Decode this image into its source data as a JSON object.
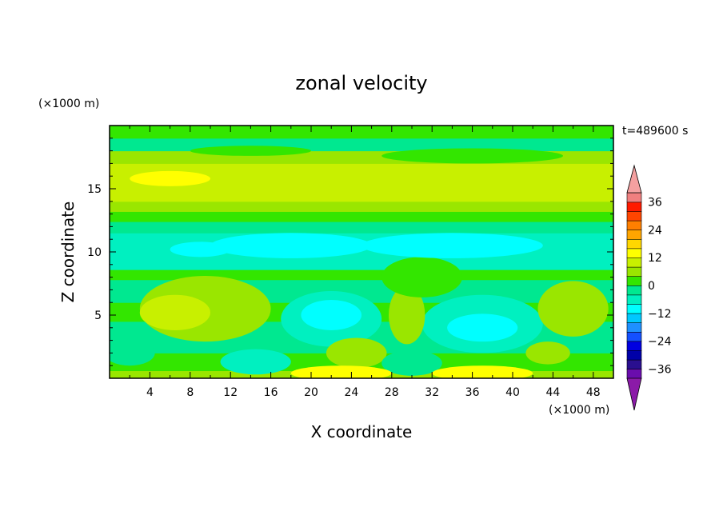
{
  "chart_data": {
    "type": "heatmap",
    "title": "zonal velocity",
    "xlabel": "X coordinate",
    "ylabel": "Z coordinate",
    "x_unit": "(×1000 m)",
    "y_unit": "(×1000 m)",
    "time_label": "t=489600 s",
    "xlim": [
      0,
      50
    ],
    "ylim": [
      0,
      20
    ],
    "xticks": [
      4,
      8,
      12,
      16,
      20,
      24,
      28,
      32,
      36,
      40,
      44,
      48
    ],
    "yticks": [
      5,
      10,
      15
    ],
    "colorbar": {
      "levels": [
        -40,
        -36,
        -32,
        -28,
        -24,
        -20,
        -16,
        -12,
        -8,
        -4,
        0,
        4,
        8,
        12,
        16,
        20,
        24,
        28,
        32,
        36,
        40
      ],
      "labeled_ticks": [
        36,
        24,
        12,
        0,
        -12,
        -24,
        -36
      ],
      "colors": [
        "#6a0dad",
        "#2a0f8f",
        "#0000a8",
        "#0000e0",
        "#1450ff",
        "#1e90ff",
        "#00c8ff",
        "#00ffff",
        "#00f0c0",
        "#00e890",
        "#33e600",
        "#9ae600",
        "#c8f000",
        "#ffff00",
        "#ffd700",
        "#ffa500",
        "#ff7f00",
        "#ff4500",
        "#ff1a00",
        "#f08080"
      ],
      "extend_low_color": "#8b1aa8",
      "extend_high_color": "#f4a0a0"
    },
    "bands": [
      {
        "z": [
          0,
          0.6
        ],
        "value": 6
      },
      {
        "z": [
          0.6,
          2.0
        ],
        "value": 0
      },
      {
        "z": [
          2.0,
          4.5
        ],
        "value": -4
      },
      {
        "z": [
          4.5,
          6.0
        ],
        "value": 2
      },
      {
        "z": [
          6.0,
          7.8
        ],
        "value": -2
      },
      {
        "z": [
          7.8,
          8.6
        ],
        "value": 2
      },
      {
        "z": [
          8.6,
          11.5
        ],
        "value": -8
      },
      {
        "z": [
          11.5,
          12.4
        ],
        "value": -4
      },
      {
        "z": [
          12.4,
          13.2
        ],
        "value": 2
      },
      {
        "z": [
          13.2,
          14.0
        ],
        "value": 6
      },
      {
        "z": [
          14.0,
          17.0
        ],
        "value": 10
      },
      {
        "z": [
          17.0,
          18.0
        ],
        "value": 6
      },
      {
        "z": [
          18.0,
          19.0
        ],
        "value": -2
      },
      {
        "z": [
          19.0,
          20.0
        ],
        "value": 1
      }
    ],
    "blobs": [
      {
        "x": 9.5,
        "z": 5.5,
        "rx": 6.5,
        "rz": 2.6,
        "value": 6
      },
      {
        "x": 6.5,
        "z": 5.2,
        "rx": 3.5,
        "rz": 1.4,
        "value": 9
      },
      {
        "x": 22,
        "z": 4.7,
        "rx": 5.0,
        "rz": 2.2,
        "value": -8
      },
      {
        "x": 22,
        "z": 5.0,
        "rx": 3.0,
        "rz": 1.2,
        "value": -11
      },
      {
        "x": 37,
        "z": 4.3,
        "rx": 6.0,
        "rz": 2.3,
        "value": -8
      },
      {
        "x": 37,
        "z": 4.0,
        "rx": 3.5,
        "rz": 1.1,
        "value": -11
      },
      {
        "x": 29.5,
        "z": 5.0,
        "rx": 1.8,
        "rz": 2.3,
        "value": 6
      },
      {
        "x": 46,
        "z": 5.5,
        "rx": 3.5,
        "rz": 2.2,
        "value": 4
      },
      {
        "x": 31,
        "z": 8.0,
        "rx": 4.0,
        "rz": 1.6,
        "value": 2
      },
      {
        "x": 24.5,
        "z": 2.0,
        "rx": 3.0,
        "rz": 1.2,
        "value": 6
      },
      {
        "x": 43.5,
        "z": 2.0,
        "rx": 2.2,
        "rz": 0.9,
        "value": 6
      },
      {
        "x": 2.0,
        "z": 2.0,
        "rx": 2.5,
        "rz": 1.0,
        "value": -4
      },
      {
        "x": 14.5,
        "z": 1.3,
        "rx": 3.5,
        "rz": 1.0,
        "value": -8
      },
      {
        "x": 30,
        "z": 1.2,
        "rx": 3.0,
        "rz": 1.0,
        "value": -4
      },
      {
        "x": 23,
        "z": 0.4,
        "rx": 5.0,
        "rz": 0.6,
        "value": 12
      },
      {
        "x": 37,
        "z": 0.4,
        "rx": 5.0,
        "rz": 0.6,
        "value": 12
      },
      {
        "x": 6,
        "z": 15.8,
        "rx": 4.0,
        "rz": 0.6,
        "value": 12
      },
      {
        "x": 18,
        "z": 10.5,
        "rx": 8.0,
        "rz": 1.0,
        "value": -11
      },
      {
        "x": 34,
        "z": 10.5,
        "rx": 9.0,
        "rz": 1.0,
        "value": -11
      },
      {
        "x": 9,
        "z": 10.2,
        "rx": 3.0,
        "rz": 0.6,
        "value": -11
      },
      {
        "x": 36,
        "z": 17.6,
        "rx": 9.0,
        "rz": 0.6,
        "value": 2
      },
      {
        "x": 14,
        "z": 18.0,
        "rx": 6.0,
        "rz": 0.4,
        "value": 2
      }
    ]
  }
}
